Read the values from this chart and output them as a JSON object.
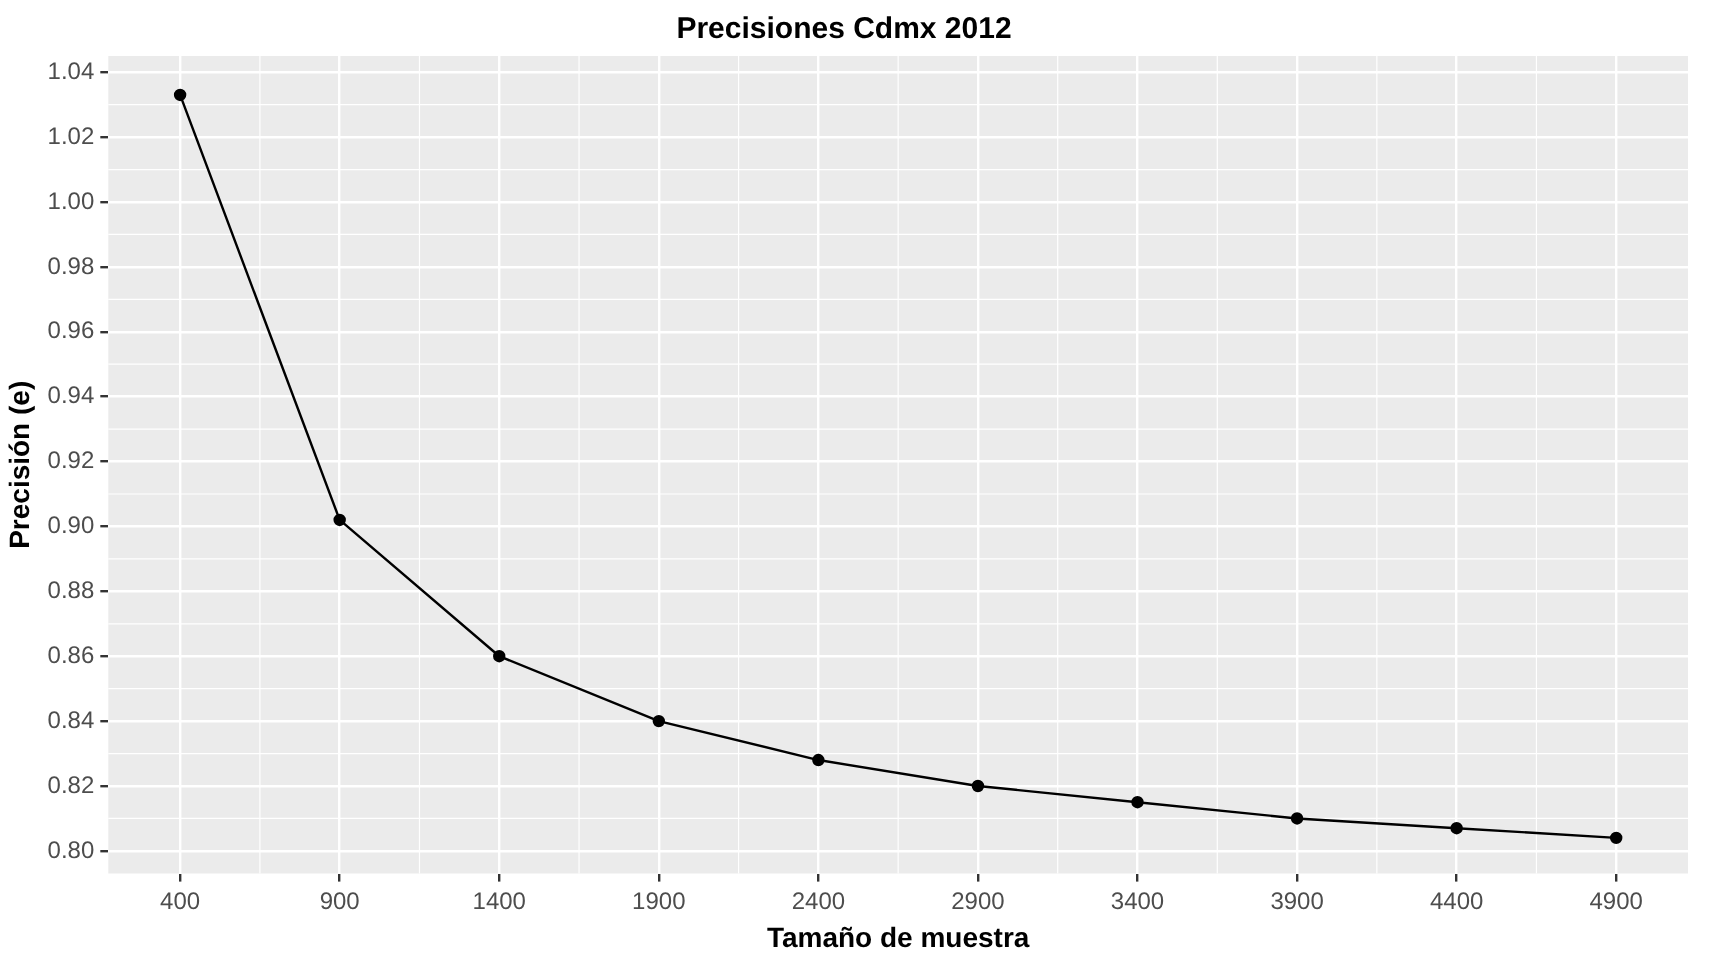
{
  "chart_data": {
    "type": "line",
    "title": "Precisiones Cdmx 2012",
    "xlabel": "Tamaño de muestra",
    "ylabel": "Precisión (e)",
    "x": [
      400,
      900,
      1400,
      1900,
      2400,
      2900,
      3400,
      3900,
      4400,
      4900
    ],
    "series": [
      {
        "color": "#000000",
        "values": [
          1.033,
          0.902,
          0.86,
          0.84,
          0.828,
          0.82,
          0.815,
          0.81,
          0.807,
          0.804
        ]
      }
    ],
    "xlim": [
      175,
      5125
    ],
    "xticks": [
      400,
      900,
      1400,
      1900,
      2400,
      2900,
      3400,
      3900,
      4400,
      4900
    ],
    "ylim": [
      0.793,
      1.045
    ],
    "yticks": [
      {
        "value": 0.8,
        "label": "0.80"
      },
      {
        "value": 0.82,
        "label": "0.82"
      },
      {
        "value": 0.84,
        "label": "0.84"
      },
      {
        "value": 0.86,
        "label": "0.86"
      },
      {
        "value": 0.88,
        "label": "0.88"
      },
      {
        "value": 0.9,
        "label": "0.90"
      },
      {
        "value": 0.92,
        "label": "0.92"
      },
      {
        "value": 0.94,
        "label": "0.94"
      },
      {
        "value": 0.96,
        "label": "0.96"
      },
      {
        "value": 0.98,
        "label": "0.98"
      },
      {
        "value": 1.0,
        "label": "1.00"
      },
      {
        "value": 1.02,
        "label": "1.02"
      },
      {
        "value": 1.04,
        "label": "1.04"
      }
    ],
    "grid": true,
    "legend": false,
    "marker": "circle",
    "line_style": "solid"
  }
}
